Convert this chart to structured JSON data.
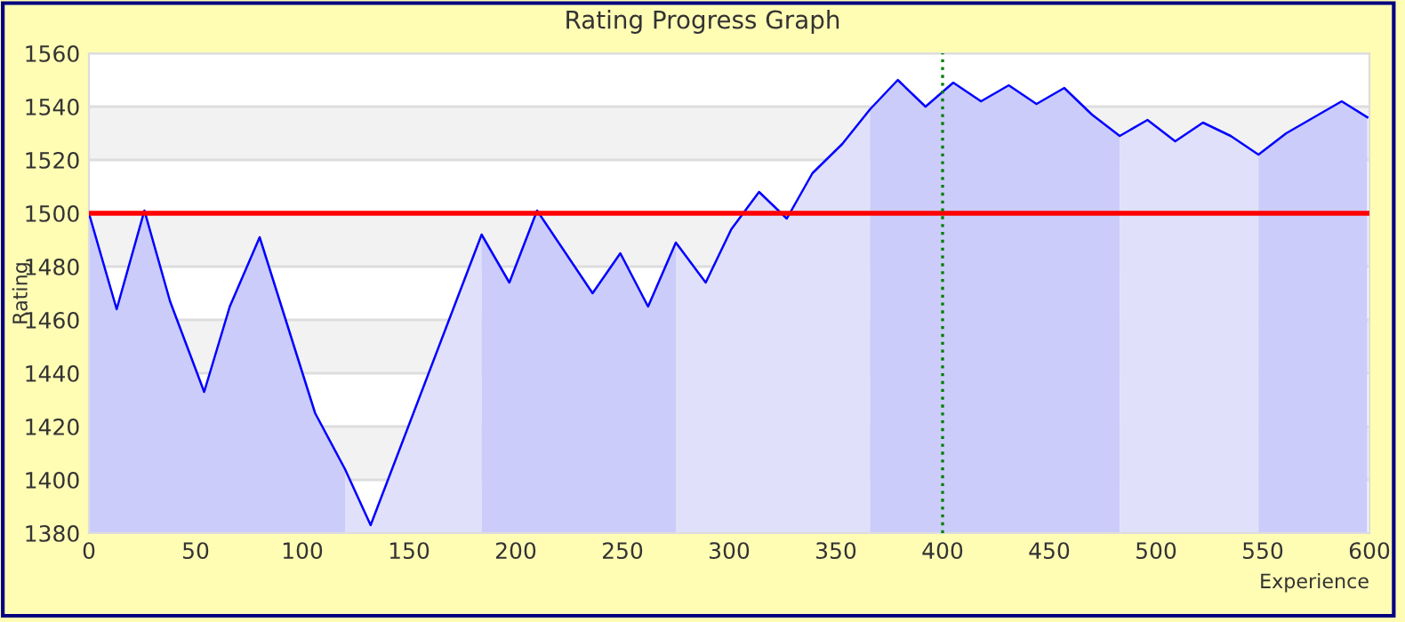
{
  "chart_data": {
    "type": "line",
    "title": "Rating Progress Graph",
    "xlabel": "Experience",
    "ylabel": "Rating",
    "xlim": [
      0,
      600
    ],
    "xticks": [
      0,
      50,
      100,
      150,
      200,
      250,
      300,
      350,
      400,
      450,
      500,
      550,
      600
    ],
    "ylim": [
      1380,
      1560
    ],
    "yticks": [
      1380,
      1400,
      1420,
      1440,
      1460,
      1480,
      1500,
      1520,
      1540,
      1560
    ],
    "grid": "y",
    "legend": false,
    "marker": "none",
    "line_style": "solid",
    "ref_lines": [
      {
        "axis": "y",
        "value": 1500,
        "color": "#ff0000",
        "line_style": "solid"
      },
      {
        "axis": "x",
        "value": 400,
        "color": "#008000",
        "line_style": "dotted"
      }
    ],
    "series": [
      {
        "type": "area",
        "color": "#ccccfa",
        "x": [
          0,
          13,
          26,
          38,
          54,
          66,
          80,
          106,
          120
        ],
        "values": [
          1500,
          1464,
          1501,
          1467,
          1433,
          1465,
          1491,
          1425,
          1404
        ]
      },
      {
        "type": "area",
        "color": "#e0e0fa",
        "x": [
          120,
          132,
          184
        ],
        "values": [
          1404,
          1383,
          1492
        ]
      },
      {
        "type": "area",
        "color": "#ccccfa",
        "x": [
          184,
          197,
          210,
          236,
          249,
          262,
          275
        ],
        "values": [
          1492,
          1474,
          1501,
          1470,
          1485,
          1465,
          1489
        ]
      },
      {
        "type": "area",
        "color": "#e0e0fa",
        "x": [
          275,
          289,
          301,
          314,
          327,
          339,
          353,
          366
        ],
        "values": [
          1489,
          1474,
          1494,
          1508,
          1498,
          1515,
          1526,
          1539
        ]
      },
      {
        "type": "area",
        "color": "#ccccfa",
        "x": [
          366,
          379,
          392,
          405,
          418,
          431,
          444,
          457,
          470,
          483
        ],
        "values": [
          1539,
          1550,
          1540,
          1549,
          1542,
          1548,
          1541,
          1547,
          1537,
          1529
        ]
      },
      {
        "type": "area",
        "color": "#e0e0fa",
        "x": [
          483,
          496,
          509,
          522,
          535,
          548
        ],
        "values": [
          1529,
          1535,
          1527,
          1534,
          1529,
          1522
        ]
      },
      {
        "type": "area",
        "color": "#ccccfa",
        "x": [
          548,
          561,
          587,
          599
        ],
        "values": [
          1522,
          1530,
          1542,
          1536
        ]
      },
      {
        "color": "#0000ff",
        "x": [
          0,
          13,
          26,
          38,
          54,
          66,
          80,
          106,
          120,
          132,
          184,
          197,
          210,
          236,
          249,
          262,
          275,
          289,
          301,
          314,
          327,
          339,
          353,
          366,
          379,
          392,
          405,
          418,
          431,
          444,
          457,
          470,
          483,
          496,
          509,
          522,
          535,
          548,
          561,
          587,
          599
        ],
        "values": [
          1500,
          1464,
          1501,
          1467,
          1433,
          1465,
          1491,
          1425,
          1404,
          1383,
          1492,
          1474,
          1501,
          1470,
          1485,
          1465,
          1489,
          1474,
          1494,
          1508,
          1498,
          1515,
          1526,
          1539,
          1550,
          1540,
          1549,
          1542,
          1548,
          1541,
          1547,
          1537,
          1529,
          1535,
          1527,
          1534,
          1529,
          1522,
          1530,
          1542,
          1536
        ]
      }
    ]
  }
}
